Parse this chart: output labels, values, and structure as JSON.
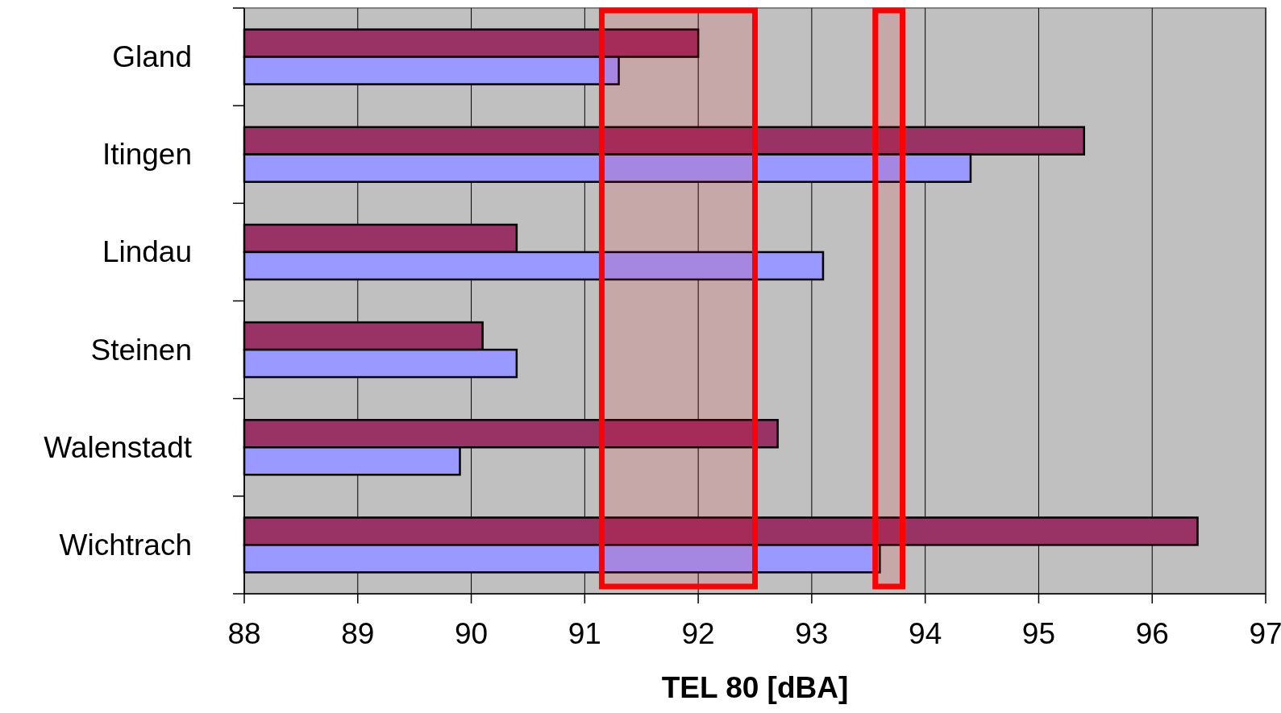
{
  "chart_data": {
    "type": "bar",
    "orientation": "horizontal",
    "xlabel": "TEL 80 [dBA]",
    "categories": [
      "Gland",
      "Itingen",
      "Lindau",
      "Steinen",
      "Walenstadt",
      "Wichtrach"
    ],
    "series": [
      {
        "color": "#993366",
        "values": [
          92.0,
          95.4,
          90.4,
          90.1,
          92.7,
          96.4
        ]
      },
      {
        "color": "#9999ff",
        "values": [
          91.3,
          94.4,
          93.1,
          90.4,
          89.9,
          93.6
        ]
      }
    ],
    "xlim": [
      88,
      97
    ],
    "xticks": [
      88,
      89,
      90,
      91,
      92,
      93,
      94,
      95,
      96,
      97
    ],
    "grid": "x",
    "bands": [
      {
        "axis": "x",
        "from": 91.15,
        "to": 92.5,
        "color": "#ff0000"
      },
      {
        "axis": "x",
        "from": 93.56,
        "to": 93.8,
        "color": "#ff0000"
      }
    ]
  }
}
